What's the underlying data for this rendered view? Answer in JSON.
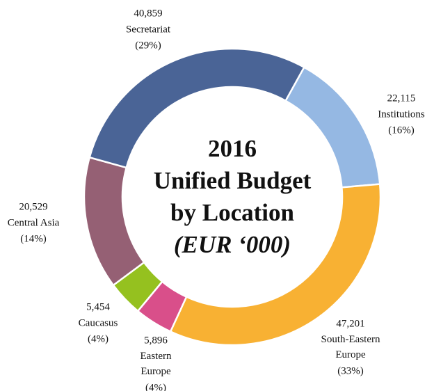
{
  "chart_data": {
    "type": "donut",
    "title_lines": [
      "2016",
      "Unified Budget",
      "by Location",
      "(EUR ‘000)"
    ],
    "categories": [
      "Institutions",
      "South-Eastern Europe",
      "Eastern Europe",
      "Caucasus",
      "Central Asia",
      "Secretariat"
    ],
    "values": [
      22115,
      47201,
      5896,
      5454,
      20529,
      40859
    ],
    "value_labels": [
      "22,115",
      "47,201",
      "5,896",
      "5,454",
      "20,529",
      "40,859"
    ],
    "percent_labels": [
      "(16%)",
      "(33%)",
      "(4%)",
      "(4%)",
      "(14%)",
      "(29%)"
    ],
    "colors": [
      "#95b8e3",
      "#f8b133",
      "#d94f8a",
      "#95c11f",
      "#956074",
      "#4a6496"
    ]
  }
}
